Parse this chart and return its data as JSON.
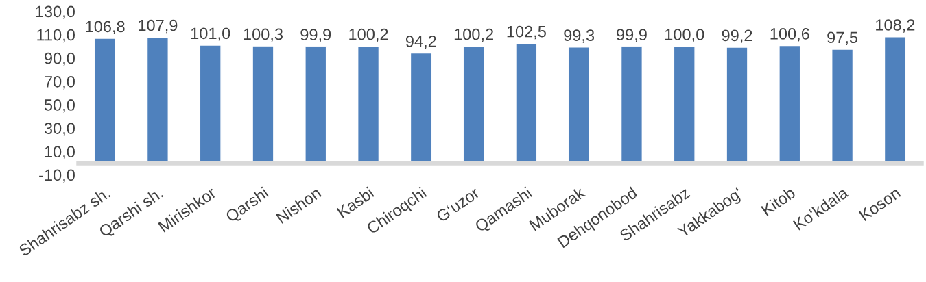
{
  "chart_data": {
    "type": "bar",
    "categories": [
      "Shahrisabz sh.",
      "Qarshi sh.",
      "Mirishkor",
      "Qarshi",
      "Nishon",
      "Kasbi",
      "Chiroqchi",
      "G‘uzor",
      "Qamashi",
      "Muborak",
      "Dehqonobod",
      "Shahrisabz",
      "Yakkabog‘",
      "Kitob",
      "Ko‘kdala",
      "Koson"
    ],
    "values": [
      106.8,
      107.9,
      101.0,
      100.3,
      99.9,
      100.2,
      94.2,
      100.2,
      102.5,
      99.3,
      99.9,
      100.0,
      99.2,
      100.6,
      97.5,
      108.2
    ],
    "value_labels": [
      "106,8",
      "107,9",
      "101,0",
      "100,3",
      "99,9",
      "100,2",
      "94,2",
      "100,2",
      "102,5",
      "99,3",
      "99,9",
      "100,0",
      "99,2",
      "100,6",
      "97,5",
      "108,2"
    ],
    "color": "#4f81bd",
    "ylim": [
      -10,
      130
    ],
    "yticks": [
      {
        "value": -10,
        "label": "-10,0"
      },
      {
        "value": 10,
        "label": "10,0"
      },
      {
        "value": 30,
        "label": "30,0"
      },
      {
        "value": 50,
        "label": "50,0"
      },
      {
        "value": 70,
        "label": "70,0"
      },
      {
        "value": 90,
        "label": "90,0"
      },
      {
        "value": 110,
        "label": "110,0"
      },
      {
        "value": 130,
        "label": "130,0"
      }
    ],
    "grid": false,
    "legend": false
  }
}
